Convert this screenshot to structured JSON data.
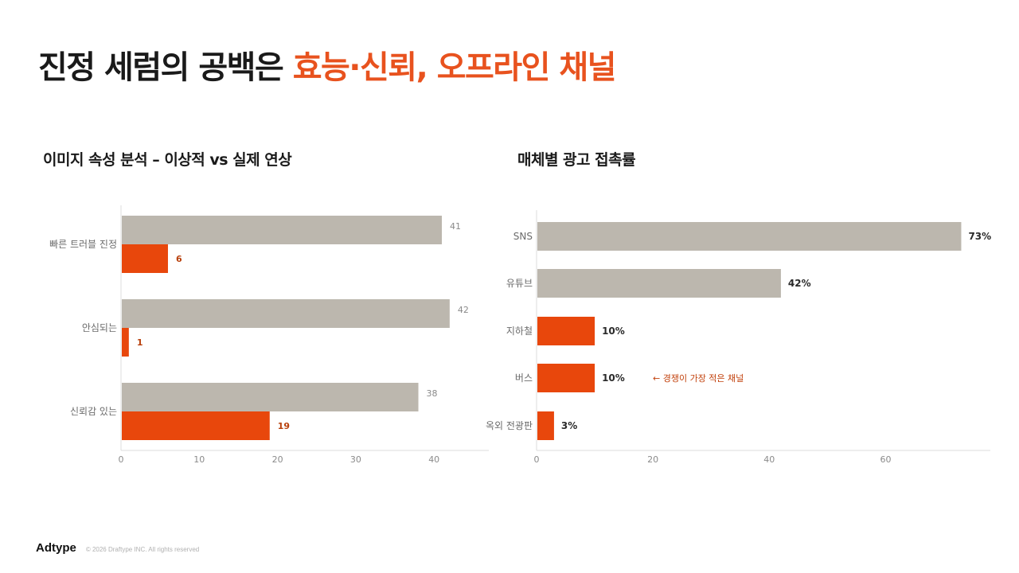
{
  "title": {
    "plain": "진정 세럼의 공백은 ",
    "accent": "효능·신뢰, 오프라인 채널"
  },
  "colors": {
    "ideal": "#bcb7ae",
    "actual": "#e8470c",
    "accent_text": "#e8521e",
    "annotation": "#c2410c"
  },
  "footer": {
    "logo": "Adtype",
    "copyright": "© 2026 Draftype INC. All rights reserved"
  },
  "chart_data": [
    {
      "type": "bar",
      "orientation": "horizontal",
      "title": "이미지 속성 분석 – 이상적 vs 실제 연상",
      "categories": [
        "빠른 트러블 진정",
        "안심되는",
        "신뢰감 있는"
      ],
      "series": [
        {
          "values": [
            41,
            42,
            38
          ]
        },
        {
          "values": [
            6,
            1,
            19
          ]
        }
      ],
      "xlim": [
        0,
        47
      ],
      "xticks": [
        0,
        10,
        20,
        30,
        40
      ],
      "grid": false,
      "legend": "none"
    },
    {
      "type": "bar",
      "orientation": "horizontal",
      "title": "매체별 광고 접촉률",
      "categories": [
        "SNS",
        "유튜브",
        "지하철",
        "버스",
        "옥외 전광판"
      ],
      "values": [
        73,
        42,
        10,
        10,
        3
      ],
      "value_labels": [
        "73%",
        "42%",
        "10%",
        "10%",
        "3%"
      ],
      "highlight": [
        false,
        false,
        true,
        true,
        true
      ],
      "xlim": [
        0,
        78
      ],
      "xticks": [
        0,
        20,
        40,
        60
      ],
      "annotation": {
        "category": "버스",
        "text": "← 경쟁이 가장 적은 채널"
      },
      "grid": false,
      "legend": "none"
    }
  ]
}
